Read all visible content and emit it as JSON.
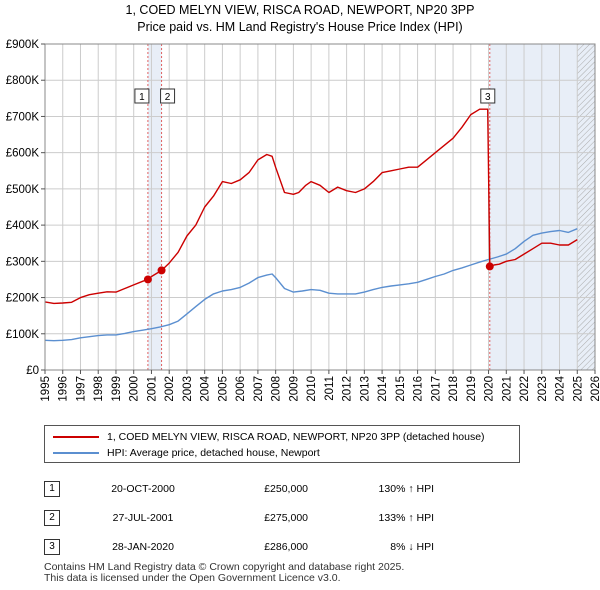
{
  "title_line1": "1, COED MELYN VIEW, RISCA ROAD, NEWPORT, NP20 3PP",
  "title_line2": "Price paid vs. HM Land Registry's House Price Index (HPI)",
  "colors": {
    "property": "#cc0000",
    "hpi": "#5b8fd0",
    "shade": "#e8eef7",
    "grid": "#cccccc"
  },
  "legend": {
    "property": "1, COED MELYN VIEW, RISCA ROAD, NEWPORT, NP20 3PP (detached house)",
    "hpi": "HPI: Average price, detached house, Newport"
  },
  "sales": [
    {
      "num": "1",
      "date": "20-OCT-2000",
      "price": "£250,000",
      "hpi": "130% ↑ HPI"
    },
    {
      "num": "2",
      "date": "27-JUL-2001",
      "price": "£275,000",
      "hpi": "133% ↑ HPI"
    },
    {
      "num": "3",
      "date": "28-JAN-2020",
      "price": "£286,000",
      "hpi": "8% ↓ HPI"
    }
  ],
  "footer": {
    "line1": "Contains HM Land Registry data © Crown copyright and database right 2025.",
    "line2": "This data is licensed under the Open Government Licence v3.0."
  },
  "chart_data": {
    "type": "line",
    "title": "Price paid vs. HM Land Registry's House Price Index (HPI)",
    "xlim": [
      1995,
      2026
    ],
    "ylim": [
      0,
      900000
    ],
    "x_ticks": [
      "1995",
      "1996",
      "1997",
      "1998",
      "1999",
      "2000",
      "2001",
      "2002",
      "2003",
      "2004",
      "2005",
      "2006",
      "2007",
      "2008",
      "2009",
      "2010",
      "2011",
      "2012",
      "2013",
      "2014",
      "2015",
      "2016",
      "2017",
      "2018",
      "2019",
      "2020",
      "2021",
      "2022",
      "2023",
      "2024",
      "2025",
      "2026"
    ],
    "y_ticks": [
      {
        "value": 0,
        "label": "£0"
      },
      {
        "value": 100000,
        "label": "£100K"
      },
      {
        "value": 200000,
        "label": "£200K"
      },
      {
        "value": 300000,
        "label": "£300K"
      },
      {
        "value": 400000,
        "label": "£400K"
      },
      {
        "value": 500000,
        "label": "£500K"
      },
      {
        "value": 600000,
        "label": "£600K"
      },
      {
        "value": 700000,
        "label": "£700K"
      },
      {
        "value": 800000,
        "label": "£800K"
      },
      {
        "value": 900000,
        "label": "£900K"
      }
    ],
    "series": [
      {
        "name": "1, COED MELYN VIEW, RISCA ROAD, NEWPORT, NP20 3PP (detached house)",
        "x": [
          1995.0,
          1995.5,
          1996.0,
          1996.5,
          1997.0,
          1997.5,
          1998.0,
          1998.5,
          1999.0,
          1999.5,
          2000.0,
          2000.5,
          2000.8,
          2001.0,
          2001.57,
          2002.0,
          2002.5,
          2003.0,
          2003.5,
          2004.0,
          2004.5,
          2005.0,
          2005.5,
          2006.0,
          2006.5,
          2007.0,
          2007.5,
          2007.8,
          2008.0,
          2008.5,
          2009.0,
          2009.3,
          2009.7,
          2010.0,
          2010.5,
          2011.0,
          2011.5,
          2012.0,
          2012.5,
          2013.0,
          2013.5,
          2014.0,
          2014.5,
          2015.0,
          2015.5,
          2016.0,
          2016.5,
          2017.0,
          2017.5,
          2018.0,
          2018.5,
          2019.0,
          2019.5,
          2019.95,
          2020.07,
          2020.3,
          2020.6,
          2021.0,
          2021.5,
          2022.0,
          2022.5,
          2023.0,
          2023.5,
          2024.0,
          2024.5,
          2025.0
        ],
        "y": [
          188000,
          184000,
          185000,
          187000,
          200000,
          208000,
          212000,
          216000,
          215000,
          225000,
          235000,
          245000,
          250000,
          258000,
          275000,
          295000,
          325000,
          370000,
          400000,
          450000,
          480000,
          520000,
          515000,
          525000,
          545000,
          580000,
          595000,
          590000,
          560000,
          490000,
          485000,
          490000,
          510000,
          520000,
          510000,
          490000,
          505000,
          495000,
          490000,
          500000,
          520000,
          545000,
          550000,
          555000,
          560000,
          560000,
          580000,
          600000,
          620000,
          640000,
          670000,
          705000,
          720000,
          720000,
          286000,
          290000,
          292000,
          300000,
          305000,
          320000,
          335000,
          350000,
          350000,
          345000,
          345000,
          360000
        ]
      },
      {
        "name": "HPI: Average price, detached house, Newport",
        "x": [
          1995.0,
          1995.5,
          1996.0,
          1996.5,
          1997.0,
          1997.5,
          1998.0,
          1998.5,
          1999.0,
          1999.5,
          2000.0,
          2000.5,
          2001.0,
          2001.5,
          2002.0,
          2002.5,
          2003.0,
          2003.5,
          2004.0,
          2004.5,
          2005.0,
          2005.5,
          2006.0,
          2006.5,
          2007.0,
          2007.5,
          2007.8,
          2008.0,
          2008.5,
          2009.0,
          2009.5,
          2010.0,
          2010.5,
          2011.0,
          2011.5,
          2012.0,
          2012.5,
          2013.0,
          2013.5,
          2014.0,
          2014.5,
          2015.0,
          2015.5,
          2016.0,
          2016.5,
          2017.0,
          2017.5,
          2018.0,
          2018.5,
          2019.0,
          2019.5,
          2020.0,
          2020.5,
          2021.0,
          2021.5,
          2022.0,
          2022.5,
          2023.0,
          2023.5,
          2024.0,
          2024.5,
          2025.0
        ],
        "y": [
          82000,
          81000,
          82000,
          84000,
          89000,
          92000,
          95000,
          97000,
          97000,
          101000,
          106000,
          110000,
          114000,
          119000,
          125000,
          135000,
          155000,
          175000,
          195000,
          210000,
          218000,
          222000,
          228000,
          240000,
          255000,
          262000,
          265000,
          255000,
          225000,
          215000,
          218000,
          222000,
          220000,
          212000,
          210000,
          210000,
          210000,
          215000,
          222000,
          228000,
          232000,
          235000,
          238000,
          242000,
          250000,
          258000,
          265000,
          275000,
          282000,
          290000,
          298000,
          305000,
          312000,
          320000,
          335000,
          355000,
          372000,
          378000,
          382000,
          385000,
          380000,
          390000
        ]
      }
    ],
    "sale_markers": [
      {
        "label": "1",
        "x": 2000.8,
        "y": 250000
      },
      {
        "label": "2",
        "x": 2001.57,
        "y": 275000
      },
      {
        "label": "3",
        "x": 2020.07,
        "y": 286000
      }
    ],
    "forecast_region": [
      2025.0,
      2026.0
    ]
  }
}
